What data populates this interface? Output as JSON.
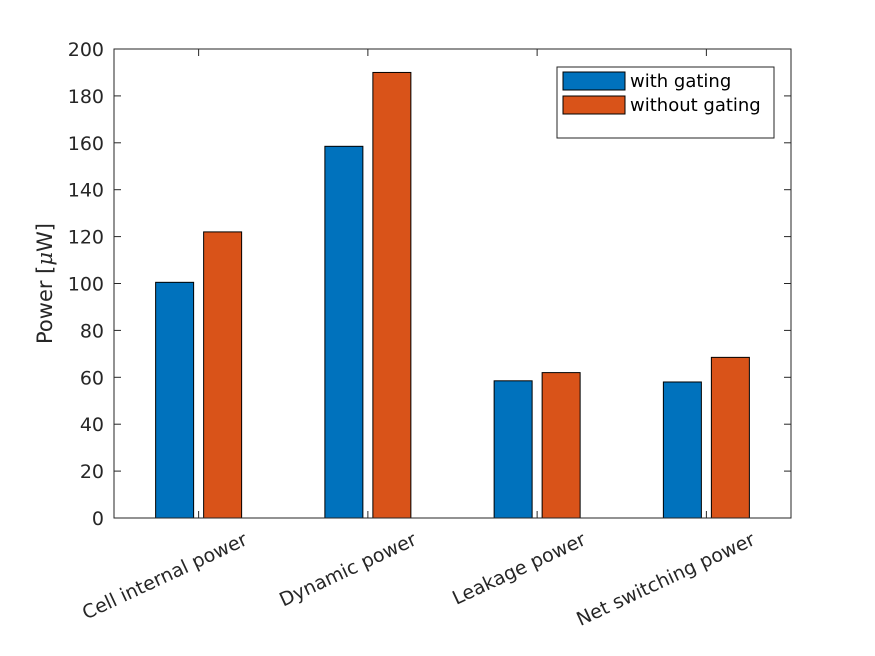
{
  "chart_data": {
    "type": "bar",
    "categories": [
      "Cell internal power",
      "Dynamic power",
      "Leakage power",
      "Net switching power"
    ],
    "series": [
      {
        "name": "with gating",
        "values": [
          100.5,
          158.5,
          58.5,
          58
        ],
        "color": "#0072BD"
      },
      {
        "name": "without gating",
        "values": [
          122,
          190,
          62,
          68.5
        ],
        "color": "#D95319"
      }
    ],
    "xlabel": "",
    "ylabel": "Power [μW]",
    "ylabel_prefix": "Power [",
    "ylabel_symbol": "μ",
    "ylabel_suffix": "W]",
    "ylim": [
      0,
      200
    ],
    "yticks": [
      0,
      20,
      40,
      60,
      80,
      100,
      120,
      140,
      160,
      180,
      200
    ],
    "grid": false,
    "legend_position": "top-right"
  }
}
